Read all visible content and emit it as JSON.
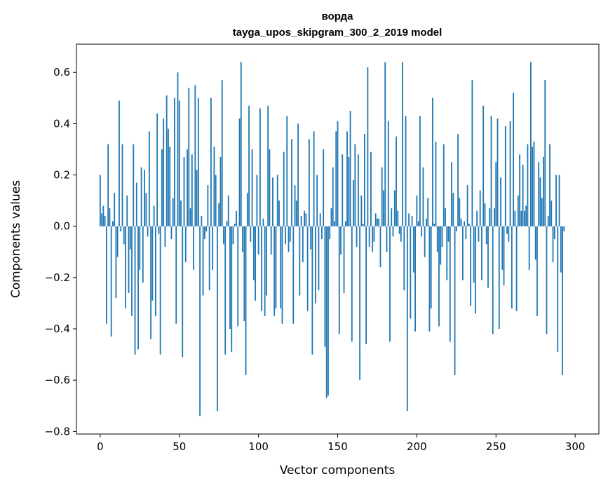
{
  "chart_data": {
    "type": "bar",
    "title": "ворда",
    "subtitle": "tayga_upos_skipgram_300_2_2019 model",
    "xlabel": "Vector components",
    "ylabel": "Components values",
    "xlim": [
      -15,
      315
    ],
    "ylim": [
      -0.81,
      0.71
    ],
    "xticks": [
      0,
      50,
      100,
      150,
      200,
      250,
      300
    ],
    "xtick_labels": [
      "0",
      "50",
      "100",
      "150",
      "200",
      "250",
      "300"
    ],
    "yticks": [
      -0.8,
      -0.6,
      -0.4,
      -0.2,
      0.0,
      0.2,
      0.4,
      0.6
    ],
    "ytick_labels": [
      "−0.8",
      "−0.6",
      "−0.4",
      "−0.2",
      "0.0",
      "0.2",
      "0.4",
      "0.6"
    ],
    "grid": false,
    "bar_color": "#1f77b4",
    "values": [
      0.2,
      0.05,
      0.08,
      0.04,
      -0.38,
      0.32,
      0.07,
      -0.43,
      0.02,
      0.13,
      -0.28,
      -0.12,
      0.49,
      -0.02,
      0.32,
      -0.07,
      -0.32,
      0.12,
      -0.26,
      -0.09,
      -0.35,
      0.32,
      -0.5,
      0.17,
      -0.48,
      -0.17,
      0.23,
      -0.22,
      0.22,
      0.13,
      -0.04,
      0.37,
      -0.44,
      -0.29,
      0.08,
      -0.35,
      0.44,
      -0.03,
      -0.5,
      0.3,
      0.42,
      -0.08,
      0.51,
      0.38,
      0.31,
      -0.05,
      0.11,
      0.5,
      -0.38,
      0.6,
      0.49,
      0.1,
      -0.51,
      0.27,
      -0.14,
      0.3,
      0.54,
      0.07,
      0.28,
      -0.17,
      0.55,
      0.22,
      0.5,
      -0.74,
      0.04,
      -0.27,
      -0.05,
      -0.02,
      0.16,
      -0.25,
      0.5,
      -0.17,
      0.31,
      0.2,
      -0.72,
      0.09,
      0.27,
      0.57,
      -0.07,
      -0.5,
      0.02,
      0.12,
      -0.4,
      -0.49,
      -0.07,
      0.01,
      0.06,
      -0.39,
      0.42,
      0.64,
      -0.1,
      -0.37,
      -0.58,
      0.13,
      0.47,
      -0.06,
      0.3,
      -0.21,
      -0.29,
      0.2,
      -0.11,
      0.46,
      -0.33,
      0.03,
      -0.35,
      -0.27,
      0.47,
      0.3,
      -0.11,
      0.19,
      -0.35,
      -0.32,
      0.2,
      0.1,
      -0.32,
      -0.38,
      0.29,
      -0.07,
      0.43,
      -0.1,
      -0.06,
      0.34,
      -0.38,
      0.16,
      0.1,
      0.4,
      -0.27,
      0.04,
      -0.14,
      0.06,
      0.05,
      -0.33,
      0.34,
      -0.09,
      -0.5,
      0.37,
      -0.3,
      0.2,
      -0.25,
      0.05,
      -0.05,
      0.3,
      -0.47,
      -0.67,
      -0.66,
      -0.05,
      0.07,
      0.23,
      0.02,
      0.37,
      0.41,
      -0.42,
      -0.11,
      0.28,
      -0.26,
      0.02,
      0.37,
      0.27,
      0.45,
      -0.45,
      0.18,
      0.32,
      -0.08,
      0.28,
      -0.6,
      0.12,
      0.01,
      0.36,
      -0.46,
      0.62,
      -0.08,
      0.29,
      -0.1,
      -0.06,
      0.05,
      0.03,
      0.03,
      -0.16,
      0.23,
      0.14,
      0.64,
      -0.1,
      0.41,
      -0.45,
      0.07,
      -0.04,
      0.14,
      0.35,
      0.06,
      -0.03,
      -0.06,
      0.64,
      -0.25,
      0.43,
      -0.72,
      0.05,
      -0.36,
      0.04,
      -0.18,
      -0.41,
      0.12,
      0.02,
      0.43,
      -0.04,
      0.23,
      -0.12,
      0.03,
      0.11,
      -0.41,
      -0.32,
      0.5,
      0.01,
      0.33,
      -0.1,
      -0.39,
      -0.15,
      -0.08,
      0.32,
      0.07,
      -0.21,
      -0.06,
      -0.45,
      0.25,
      0.13,
      -0.58,
      -0.02,
      0.36,
      0.11,
      0.03,
      -0.21,
      0.02,
      -0.05,
      0.16,
      0.01,
      -0.31,
      0.57,
      -0.22,
      -0.34,
      0.06,
      -0.06,
      0.14,
      -0.21,
      0.47,
      0.09,
      -0.07,
      -0.24,
      0.07,
      0.43,
      -0.42,
      0.07,
      0.25,
      0.42,
      -0.4,
      0.19,
      -0.17,
      -0.23,
      0.39,
      -0.03,
      -0.06,
      0.41,
      -0.32,
      0.52,
      0.06,
      -0.33,
      0.12,
      0.28,
      0.06,
      0.24,
      0.06,
      0.08,
      0.32,
      -0.17,
      0.64,
      0.31,
      0.33,
      -0.13,
      -0.35,
      0.25,
      0.19,
      0.11,
      0.27,
      0.57,
      -0.42,
      0.04,
      0.32,
      0.1,
      -0.14,
      -0.05,
      0.2,
      -0.49,
      0.2,
      -0.18,
      -0.58,
      -0.02
    ]
  }
}
